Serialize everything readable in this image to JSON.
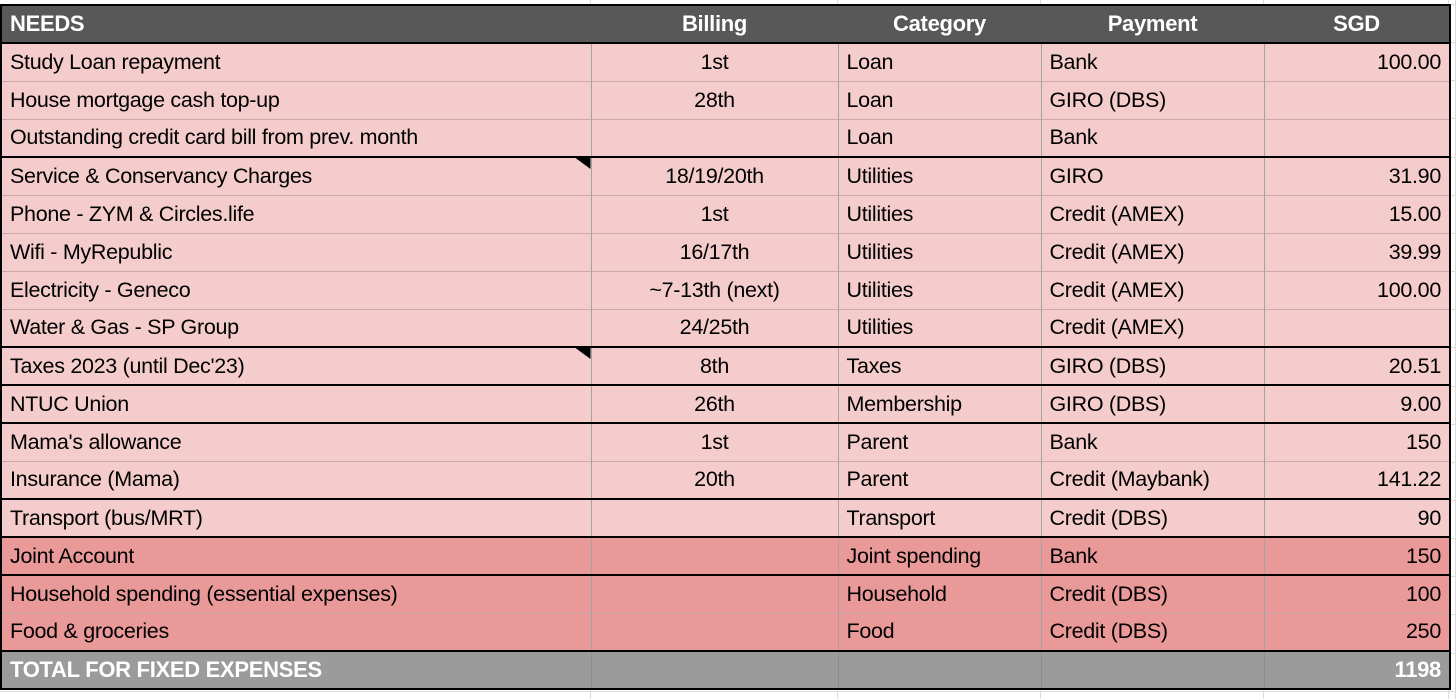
{
  "colors": {
    "header_bg": "#585858",
    "header_text": "#ffffff",
    "row_pink": "#f4cccc",
    "row_salmon": "#ea9999",
    "total_bg": "#9b9b9b",
    "total_text": "#ffffff",
    "cell_text": "#000000"
  },
  "table": {
    "columns": [
      "NEEDS",
      "Billing",
      "Category",
      "Payment",
      "SGD"
    ],
    "rows": [
      {
        "needs": "Study Loan repayment",
        "billing": "1st",
        "category": "Loan",
        "payment": "Bank",
        "sgd": "100.00",
        "highlight": false,
        "comment": false,
        "group_end": false
      },
      {
        "needs": "House mortgage cash top-up",
        "billing": "28th",
        "category": "Loan",
        "payment": "GIRO (DBS)",
        "sgd": "",
        "highlight": false,
        "comment": false,
        "group_end": false
      },
      {
        "needs": "Outstanding credit card bill from prev. month",
        "billing": "",
        "category": "Loan",
        "payment": "Bank",
        "sgd": "",
        "highlight": false,
        "comment": false,
        "group_end": true
      },
      {
        "needs": "Service & Conservancy Charges",
        "billing": "18/19/20th",
        "category": "Utilities",
        "payment": "GIRO",
        "sgd": "31.90",
        "highlight": false,
        "comment": true,
        "group_end": false
      },
      {
        "needs": "Phone - ZYM & Circles.life",
        "billing": "1st",
        "category": "Utilities",
        "payment": "Credit (AMEX)",
        "sgd": "15.00",
        "highlight": false,
        "comment": false,
        "group_end": false
      },
      {
        "needs": "Wifi - MyRepublic",
        "billing": "16/17th",
        "category": "Utilities",
        "payment": "Credit (AMEX)",
        "sgd": "39.99",
        "highlight": false,
        "comment": false,
        "group_end": false
      },
      {
        "needs": "Electricity - Geneco",
        "billing": "~7-13th (next)",
        "category": "Utilities",
        "payment": "Credit (AMEX)",
        "sgd": "100.00",
        "highlight": false,
        "comment": false,
        "group_end": false
      },
      {
        "needs": "Water & Gas - SP Group",
        "billing": "24/25th",
        "category": "Utilities",
        "payment": "Credit (AMEX)",
        "sgd": "",
        "highlight": false,
        "comment": false,
        "group_end": true
      },
      {
        "needs": "Taxes 2023 (until Dec'23)",
        "billing": "8th",
        "category": "Taxes",
        "payment": "GIRO (DBS)",
        "sgd": "20.51",
        "highlight": false,
        "comment": true,
        "group_end": true
      },
      {
        "needs": "NTUC Union",
        "billing": "26th",
        "category": "Membership",
        "payment": "GIRO (DBS)",
        "sgd": "9.00",
        "highlight": false,
        "comment": false,
        "group_end": true
      },
      {
        "needs": "Mama's allowance",
        "billing": "1st",
        "category": "Parent",
        "payment": "Bank",
        "sgd": "150",
        "highlight": false,
        "comment": false,
        "group_end": false
      },
      {
        "needs": "Insurance (Mama)",
        "billing": "20th",
        "category": "Parent",
        "payment": "Credit (Maybank)",
        "sgd": "141.22",
        "highlight": false,
        "comment": false,
        "group_end": true
      },
      {
        "needs": "Transport (bus/MRT)",
        "billing": "",
        "category": "Transport",
        "payment": "Credit (DBS)",
        "sgd": "90",
        "highlight": false,
        "comment": false,
        "group_end": true
      },
      {
        "needs": "Joint Account",
        "billing": "",
        "category": "Joint spending",
        "payment": "Bank",
        "sgd": "150",
        "highlight": true,
        "comment": false,
        "group_end": true
      },
      {
        "needs": "Household spending (essential expenses)",
        "billing": "",
        "category": "Household",
        "payment": "Credit (DBS)",
        "sgd": "100",
        "highlight": true,
        "comment": false,
        "group_end": false
      },
      {
        "needs": "Food & groceries",
        "billing": "",
        "category": "Food",
        "payment": "Credit (DBS)",
        "sgd": "250",
        "highlight": true,
        "comment": false,
        "group_end": true
      }
    ],
    "total": {
      "label": "TOTAL FOR FIXED EXPENSES",
      "value": "1198"
    }
  }
}
